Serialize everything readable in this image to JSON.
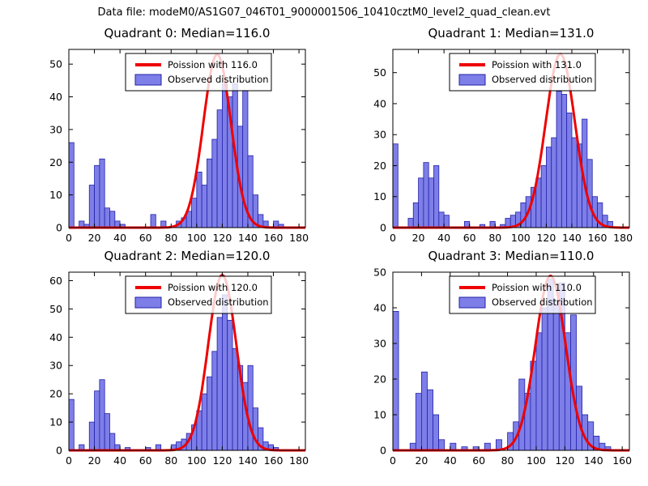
{
  "suptitle": "Data file: modeM0/AS1G07_046T01_9000001506_10410cztM0_level2_quad_clean.evt",
  "colors": {
    "bar_fill": "#7e7ee8",
    "bar_edge": "#2222aa",
    "curve": "#ee0000",
    "axis": "#000000",
    "legend_bg": "#ffffff"
  },
  "chart_data": [
    {
      "type": "bar",
      "subtype": "histogram-with-curve",
      "title": "Quadrant 0: Median=116.0",
      "legend": [
        "Poission with 116.0",
        "Observed distribution"
      ],
      "xlim": [
        0,
        185
      ],
      "ylim": [
        0,
        54.5
      ],
      "xticks": [
        0,
        20,
        40,
        60,
        80,
        100,
        120,
        140,
        160,
        180
      ],
      "yticks": [
        0,
        10,
        20,
        30,
        40,
        50
      ],
      "bin_width": 4,
      "bars": [
        [
          0,
          26
        ],
        [
          8,
          2
        ],
        [
          12,
          1
        ],
        [
          16,
          13
        ],
        [
          20,
          19
        ],
        [
          24,
          21
        ],
        [
          28,
          6
        ],
        [
          32,
          5
        ],
        [
          36,
          2
        ],
        [
          40,
          1
        ],
        [
          64,
          4
        ],
        [
          72,
          2
        ],
        [
          84,
          2
        ],
        [
          88,
          3
        ],
        [
          92,
          5
        ],
        [
          96,
          9
        ],
        [
          100,
          17
        ],
        [
          104,
          13
        ],
        [
          108,
          21
        ],
        [
          112,
          27
        ],
        [
          116,
          36
        ],
        [
          120,
          44
        ],
        [
          124,
          40
        ],
        [
          128,
          44
        ],
        [
          132,
          31
        ],
        [
          136,
          42
        ],
        [
          140,
          22
        ],
        [
          144,
          10
        ],
        [
          148,
          4
        ],
        [
          152,
          2
        ],
        [
          160,
          2
        ],
        [
          164,
          1
        ]
      ],
      "curve": {
        "type": "poisson",
        "lambda": 116,
        "sigma": 10.77,
        "peak": 53
      }
    },
    {
      "type": "bar",
      "subtype": "histogram-with-curve",
      "title": "Quadrant 1: Median=131.0",
      "legend": [
        "Poission with 131.0",
        "Observed distribution"
      ],
      "xlim": [
        0,
        185
      ],
      "ylim": [
        0,
        57.5
      ],
      "xticks": [
        0,
        20,
        40,
        60,
        80,
        100,
        120,
        140,
        160,
        180
      ],
      "yticks": [
        0,
        10,
        20,
        30,
        40,
        50
      ],
      "bin_width": 4,
      "bars": [
        [
          0,
          27
        ],
        [
          12,
          3
        ],
        [
          16,
          8
        ],
        [
          20,
          16
        ],
        [
          24,
          21
        ],
        [
          28,
          16
        ],
        [
          32,
          20
        ],
        [
          36,
          5
        ],
        [
          40,
          4
        ],
        [
          56,
          2
        ],
        [
          68,
          1
        ],
        [
          76,
          2
        ],
        [
          84,
          1
        ],
        [
          88,
          3
        ],
        [
          92,
          4
        ],
        [
          96,
          5
        ],
        [
          100,
          8
        ],
        [
          104,
          10
        ],
        [
          108,
          13
        ],
        [
          112,
          16
        ],
        [
          116,
          20
        ],
        [
          120,
          26
        ],
        [
          124,
          29
        ],
        [
          128,
          44
        ],
        [
          132,
          43
        ],
        [
          136,
          37
        ],
        [
          140,
          29
        ],
        [
          144,
          27
        ],
        [
          148,
          35
        ],
        [
          152,
          22
        ],
        [
          156,
          10
        ],
        [
          160,
          8
        ],
        [
          164,
          4
        ],
        [
          168,
          2
        ]
      ],
      "curve": {
        "type": "poisson",
        "lambda": 131,
        "sigma": 11.45,
        "peak": 56
      }
    },
    {
      "type": "bar",
      "subtype": "histogram-with-curve",
      "title": "Quadrant 2: Median=120.0",
      "legend": [
        "Poission with 120.0",
        "Observed distribution"
      ],
      "xlim": [
        0,
        185
      ],
      "ylim": [
        0,
        63
      ],
      "xticks": [
        0,
        20,
        40,
        60,
        80,
        100,
        120,
        140,
        160,
        180
      ],
      "yticks": [
        0,
        10,
        20,
        30,
        40,
        50,
        60
      ],
      "bin_width": 4,
      "bars": [
        [
          0,
          18
        ],
        [
          8,
          2
        ],
        [
          16,
          10
        ],
        [
          20,
          21
        ],
        [
          24,
          25
        ],
        [
          28,
          13
        ],
        [
          32,
          6
        ],
        [
          36,
          2
        ],
        [
          44,
          1
        ],
        [
          60,
          1
        ],
        [
          68,
          2
        ],
        [
          80,
          2
        ],
        [
          84,
          3
        ],
        [
          88,
          4
        ],
        [
          92,
          6
        ],
        [
          96,
          9
        ],
        [
          100,
          14
        ],
        [
          104,
          20
        ],
        [
          108,
          26
        ],
        [
          112,
          35
        ],
        [
          116,
          47
        ],
        [
          120,
          55
        ],
        [
          124,
          46
        ],
        [
          128,
          36
        ],
        [
          132,
          30
        ],
        [
          136,
          24
        ],
        [
          140,
          30
        ],
        [
          144,
          15
        ],
        [
          148,
          8
        ],
        [
          152,
          3
        ],
        [
          156,
          2
        ],
        [
          160,
          1
        ]
      ],
      "curve": {
        "type": "poisson",
        "lambda": 120,
        "sigma": 10.95,
        "peak": 62
      }
    },
    {
      "type": "bar",
      "subtype": "histogram-with-curve",
      "title": "Quadrant 3: Median=110.0",
      "legend": [
        "Poission with 110.0",
        "Observed distribution"
      ],
      "xlim": [
        0,
        165
      ],
      "ylim": [
        0,
        50
      ],
      "xticks": [
        0,
        20,
        40,
        60,
        80,
        100,
        120,
        140,
        160
      ],
      "yticks": [
        0,
        10,
        20,
        30,
        40,
        50
      ],
      "bin_width": 4,
      "bars": [
        [
          0,
          39
        ],
        [
          12,
          2
        ],
        [
          16,
          16
        ],
        [
          20,
          22
        ],
        [
          24,
          17
        ],
        [
          28,
          10
        ],
        [
          32,
          3
        ],
        [
          40,
          2
        ],
        [
          48,
          1
        ],
        [
          56,
          1
        ],
        [
          64,
          2
        ],
        [
          72,
          3
        ],
        [
          80,
          5
        ],
        [
          84,
          8
        ],
        [
          88,
          20
        ],
        [
          92,
          16
        ],
        [
          96,
          25
        ],
        [
          100,
          33
        ],
        [
          104,
          40
        ],
        [
          108,
          48
        ],
        [
          112,
          42
        ],
        [
          116,
          47
        ],
        [
          120,
          33
        ],
        [
          124,
          38
        ],
        [
          128,
          18
        ],
        [
          132,
          10
        ],
        [
          136,
          8
        ],
        [
          140,
          4
        ],
        [
          144,
          2
        ],
        [
          148,
          1
        ]
      ],
      "curve": {
        "type": "poisson",
        "lambda": 110,
        "sigma": 10.49,
        "peak": 49
      }
    }
  ]
}
